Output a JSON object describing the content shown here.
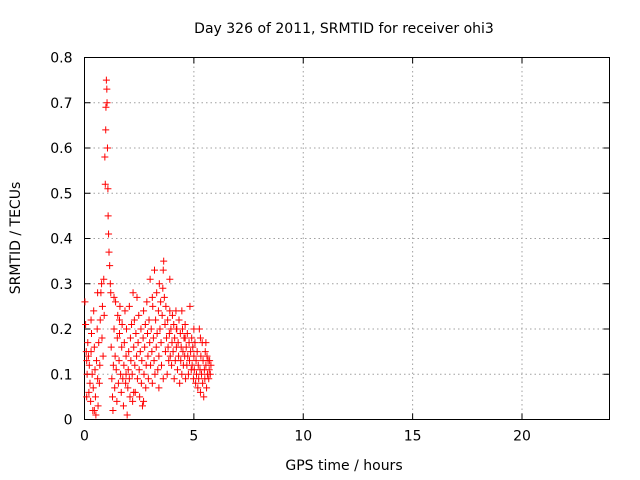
{
  "chart_data": {
    "type": "scatter",
    "title": "Day 326 of 2011, SRMTID for receiver ohi3",
    "xlabel": "GPS time / hours",
    "ylabel": "SRMTID / TECUs",
    "xlim": [
      0,
      24
    ],
    "ylim": [
      0,
      0.8
    ],
    "xticks": [
      0,
      5,
      10,
      15,
      20
    ],
    "yticks": [
      0,
      0.1,
      0.2,
      0.3,
      0.4,
      0.5,
      0.6,
      0.7,
      0.8
    ],
    "grid": true,
    "marker": "+",
    "color": "#ff0000",
    "series": [
      {
        "points": [
          [
            0.02,
            0.26
          ],
          [
            0.05,
            0.21
          ],
          [
            0.08,
            0.15
          ],
          [
            0.1,
            0.13
          ],
          [
            0.12,
            0.1
          ],
          [
            0.15,
            0.17
          ],
          [
            0.18,
            0.14
          ],
          [
            0.2,
            0.06
          ],
          [
            0.22,
            0.12
          ],
          [
            0.25,
            0.08
          ],
          [
            0.28,
            0.04
          ],
          [
            0.3,
            0.15
          ],
          [
            0.32,
            0.19
          ],
          [
            0.35,
            0.1
          ],
          [
            0.38,
            0.02
          ],
          [
            0.4,
            0.07
          ],
          [
            0.42,
            0.24
          ],
          [
            0.45,
            0.16
          ],
          [
            0.48,
            0.11
          ],
          [
            0.5,
            0.05
          ],
          [
            0.52,
            0.01
          ],
          [
            0.55,
            0.13
          ],
          [
            0.58,
            0.2
          ],
          [
            0.6,
            0.09
          ],
          [
            0.62,
            0.03
          ],
          [
            0.65,
            0.17
          ],
          [
            0.68,
            0.08
          ],
          [
            0.7,
            0.12
          ],
          [
            0.72,
            0.22
          ],
          [
            0.75,
            0.28
          ],
          [
            0.78,
            0.3
          ],
          [
            0.8,
            0.18
          ],
          [
            0.82,
            0.25
          ],
          [
            0.85,
            0.14
          ],
          [
            0.88,
            0.31
          ],
          [
            0.9,
            0.23
          ],
          [
            0.93,
            0.58
          ],
          [
            0.95,
            0.52
          ],
          [
            0.97,
            0.64
          ],
          [
            0.98,
            0.69
          ],
          [
            1.0,
            0.75
          ],
          [
            1.02,
            0.73
          ],
          [
            1.03,
            0.7
          ],
          [
            1.05,
            0.6
          ],
          [
            1.07,
            0.51
          ],
          [
            1.08,
            0.45
          ],
          [
            1.1,
            0.41
          ],
          [
            1.12,
            0.37
          ],
          [
            1.15,
            0.34
          ],
          [
            1.18,
            0.3
          ],
          [
            1.2,
            0.28
          ],
          [
            1.22,
            0.16
          ],
          [
            1.25,
            0.09
          ],
          [
            1.28,
            0.05
          ],
          [
            1.3,
            0.02
          ],
          [
            1.32,
            0.12
          ],
          [
            1.35,
            0.2
          ],
          [
            1.38,
            0.07
          ],
          [
            1.4,
            0.14
          ],
          [
            1.42,
            0.26
          ],
          [
            1.45,
            0.11
          ],
          [
            1.48,
            0.04
          ],
          [
            1.5,
            0.18
          ],
          [
            1.52,
            0.23
          ],
          [
            1.55,
            0.08
          ],
          [
            1.58,
            0.13
          ],
          [
            1.6,
            0.19
          ],
          [
            1.62,
            0.25
          ],
          [
            1.65,
            0.1
          ],
          [
            1.68,
            0.06
          ],
          [
            1.7,
            0.16
          ],
          [
            1.72,
            0.21
          ],
          [
            1.75,
            0.09
          ],
          [
            1.78,
            0.03
          ],
          [
            1.8,
            0.12
          ],
          [
            1.82,
            0.17
          ],
          [
            1.85,
            0.24
          ],
          [
            1.88,
            0.08
          ],
          [
            1.9,
            0.14
          ],
          [
            1.92,
            0.2
          ],
          [
            1.95,
            0.01
          ],
          [
            1.98,
            0.07
          ],
          [
            2.0,
            0.11
          ],
          [
            2.02,
            0.15
          ],
          [
            2.05,
            0.09
          ],
          [
            2.08,
            0.05
          ],
          [
            2.1,
            0.18
          ],
          [
            2.12,
            0.13
          ],
          [
            2.15,
            0.21
          ],
          [
            2.18,
            0.1
          ],
          [
            2.2,
            0.04
          ],
          [
            2.22,
            0.28
          ],
          [
            2.25,
            0.16
          ],
          [
            2.28,
            0.22
          ],
          [
            2.3,
            0.12
          ],
          [
            2.32,
            0.06
          ],
          [
            2.35,
            0.19
          ],
          [
            2.38,
            0.14
          ],
          [
            2.4,
            0.27
          ],
          [
            2.42,
            0.09
          ],
          [
            2.45,
            0.17
          ],
          [
            2.48,
            0.23
          ],
          [
            2.5,
            0.11
          ],
          [
            2.52,
            0.05
          ],
          [
            2.55,
            0.15
          ],
          [
            2.58,
            0.2
          ],
          [
            2.6,
            0.08
          ],
          [
            2.62,
            0.13
          ],
          [
            2.65,
            0.03
          ],
          [
            2.68,
            0.18
          ],
          [
            2.7,
            0.24
          ],
          [
            2.72,
            0.1
          ],
          [
            2.75,
            0.16
          ],
          [
            2.78,
            0.21
          ],
          [
            2.8,
            0.07
          ],
          [
            2.82,
            0.12
          ],
          [
            2.85,
            0.26
          ],
          [
            2.88,
            0.19
          ],
          [
            2.9,
            0.14
          ],
          [
            2.92,
            0.09
          ],
          [
            2.95,
            0.22
          ],
          [
            2.98,
            0.17
          ],
          [
            3.0,
            0.31
          ],
          [
            3.02,
            0.12
          ],
          [
            3.05,
            0.2
          ],
          [
            3.08,
            0.15
          ],
          [
            3.1,
            0.08
          ],
          [
            3.12,
            0.25
          ],
          [
            3.15,
            0.18
          ],
          [
            3.18,
            0.13
          ],
          [
            3.2,
            0.33
          ],
          [
            3.22,
            0.1
          ],
          [
            3.25,
            0.22
          ],
          [
            3.28,
            0.16
          ],
          [
            3.3,
            0.28
          ],
          [
            3.32,
            0.19
          ],
          [
            3.35,
            0.11
          ],
          [
            3.38,
            0.24
          ],
          [
            3.4,
            0.14
          ],
          [
            3.42,
            0.3
          ],
          [
            3.45,
            0.2
          ],
          [
            3.48,
            0.26
          ],
          [
            3.5,
            0.17
          ],
          [
            3.52,
            0.12
          ],
          [
            3.55,
            0.23
          ],
          [
            3.58,
            0.29
          ],
          [
            3.6,
            0.33
          ],
          [
            3.62,
            0.35
          ],
          [
            3.65,
            0.27
          ],
          [
            3.68,
            0.21
          ],
          [
            3.7,
            0.15
          ],
          [
            3.72,
            0.25
          ],
          [
            3.75,
            0.18
          ],
          [
            3.78,
            0.1
          ],
          [
            3.8,
            0.22
          ],
          [
            3.82,
            0.16
          ],
          [
            3.85,
            0.13
          ],
          [
            3.88,
            0.19
          ],
          [
            3.9,
            0.24
          ],
          [
            3.92,
            0.14
          ],
          [
            3.95,
            0.2
          ],
          [
            3.98,
            0.12
          ],
          [
            4.0,
            0.17
          ],
          [
            4.02,
            0.23
          ],
          [
            4.05,
            0.15
          ],
          [
            4.08,
            0.21
          ],
          [
            4.1,
            0.09
          ],
          [
            4.12,
            0.18
          ],
          [
            4.15,
            0.13
          ],
          [
            4.18,
            0.24
          ],
          [
            4.2,
            0.16
          ],
          [
            4.22,
            0.2
          ],
          [
            4.25,
            0.11
          ],
          [
            4.28,
            0.17
          ],
          [
            4.3,
            0.14
          ],
          [
            4.32,
            0.22
          ],
          [
            4.35,
            0.08
          ],
          [
            4.38,
            0.19
          ],
          [
            4.4,
            0.13
          ],
          [
            4.42,
            0.16
          ],
          [
            4.45,
            0.1
          ],
          [
            4.48,
            0.2
          ],
          [
            4.5,
            0.15
          ],
          [
            4.52,
            0.12
          ],
          [
            4.55,
            0.18
          ],
          [
            4.58,
            0.14
          ],
          [
            4.6,
            0.21
          ],
          [
            4.62,
            0.09
          ],
          [
            4.65,
            0.16
          ],
          [
            4.68,
            0.12
          ],
          [
            4.7,
            0.19
          ],
          [
            4.72,
            0.14
          ],
          [
            4.75,
            0.1
          ],
          [
            4.78,
            0.17
          ],
          [
            4.8,
            0.13
          ],
          [
            4.82,
            0.25
          ],
          [
            4.85,
            0.15
          ],
          [
            4.88,
            0.11
          ],
          [
            4.9,
            0.18
          ],
          [
            4.92,
            0.12
          ],
          [
            4.95,
            0.16
          ],
          [
            4.98,
            0.09
          ],
          [
            5.0,
            0.14
          ],
          [
            5.02,
            0.11
          ],
          [
            5.05,
            0.17
          ],
          [
            5.08,
            0.08
          ],
          [
            5.1,
            0.13
          ],
          [
            5.12,
            0.1
          ],
          [
            5.15,
            0.15
          ],
          [
            5.18,
            0.07
          ],
          [
            5.2,
            0.12
          ],
          [
            5.22,
            0.09
          ],
          [
            5.25,
            0.2
          ],
          [
            5.28,
            0.11
          ],
          [
            5.3,
            0.06
          ],
          [
            5.32,
            0.14
          ],
          [
            5.35,
            0.1
          ],
          [
            5.38,
            0.17
          ],
          [
            5.4,
            0.08
          ],
          [
            5.42,
            0.13
          ],
          [
            5.45,
            0.05
          ],
          [
            5.48,
            0.11
          ],
          [
            5.5,
            0.09
          ],
          [
            5.52,
            0.15
          ],
          [
            5.55,
            0.12
          ],
          [
            5.58,
            0.07
          ],
          [
            5.6,
            0.14
          ],
          [
            5.62,
            0.1
          ],
          [
            5.65,
            0.13
          ],
          [
            5.68,
            0.09
          ],
          [
            5.7,
            0.11
          ],
          [
            5.72,
            0.13
          ],
          [
            5.75,
            0.1
          ],
          [
            5.78,
            0.12
          ],
          [
            0.3,
            0.22
          ],
          [
            0.6,
            0.28
          ],
          [
            1.35,
            0.27
          ],
          [
            1.6,
            0.22
          ],
          [
            1.9,
            0.1
          ],
          [
            2.25,
            0.06
          ],
          [
            2.7,
            0.04
          ],
          [
            3.1,
            0.27
          ],
          [
            3.4,
            0.07
          ],
          [
            3.6,
            0.09
          ],
          [
            4.2,
            0.2
          ],
          [
            4.6,
            0.18
          ],
          [
            5.0,
            0.2
          ],
          [
            5.3,
            0.18
          ],
          [
            0.1,
            0.05
          ],
          [
            0.45,
            0.02
          ],
          [
            2.05,
            0.25
          ],
          [
            3.9,
            0.31
          ],
          [
            4.45,
            0.24
          ],
          [
            5.55,
            0.17
          ]
        ]
      }
    ]
  }
}
